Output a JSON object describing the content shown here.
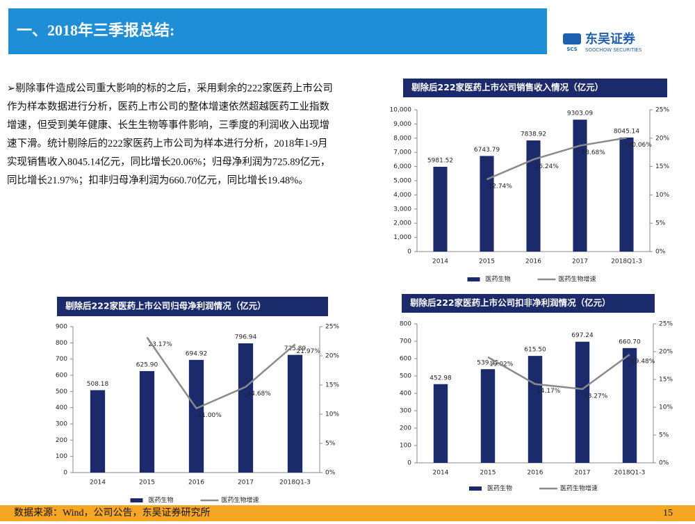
{
  "header": {
    "title": "一、2018年三季报总结:",
    "logo_text": "东吴证券",
    "logo_sub": "SOOCHOW SECURITIES",
    "logo_mark": "SCS"
  },
  "text": {
    "lines": [
      "➢剔除事件造成公司重大影响的标的之后，采用剩余的222家医药上市公司",
      "作为样本数据进行分析，医药上市公司的整体增速依然超越医药工业指数",
      "增速，但受到美年健康、长生生物等事件影响，三季度的利润收入出现增",
      "速下滑。统计剔除后的222家医药上市公司为样本进行分析，2018年1-9月",
      "实现销售收入8045.14亿元，同比增长20.06%；归母净利润为725.89亿元，",
      "同比增长21.97%；扣非归母净利润为660.70亿元，同比增长19.48%。"
    ]
  },
  "footer": {
    "source": "数据来源：Wind，公司公告，东吴证券研究所",
    "page": "15"
  },
  "chart_data": [
    {
      "type": "bar",
      "title": "剔除后222家医药上市公司销售收入情况（亿元）",
      "categories": [
        "2014",
        "2015",
        "2016",
        "2017",
        "2018Q1-3"
      ],
      "series": [
        {
          "name": "医药生物",
          "color": "#1b2a6b",
          "values": [
            5981.52,
            6743.79,
            7838.92,
            9303.09,
            8045.14
          ]
        },
        {
          "name": "医药生物增速",
          "color": "#8a8a8a",
          "axis": "y2",
          "values": [
            null,
            12.74,
            16.24,
            18.68,
            20.06
          ],
          "value_labels": [
            null,
            "12.74%",
            "16.24%",
            "18.68%",
            "20.06%"
          ]
        }
      ],
      "ylim": [
        0,
        10000
      ],
      "yticks": [
        0,
        {
          "value": 1000,
          "label": "1,000"
        },
        {
          "value": 2000,
          "label": "2,000"
        },
        {
          "value": 3000,
          "label": "3,000"
        },
        {
          "value": 4000,
          "label": "4,000"
        },
        {
          "value": 5000,
          "label": "5,000"
        },
        {
          "value": 6000,
          "label": "6,000"
        },
        {
          "value": 7000,
          "label": "7,000"
        },
        {
          "value": 8000,
          "label": "8,000"
        },
        {
          "value": 9000,
          "label": "9,000"
        },
        {
          "value": 10000,
          "label": "10,000"
        }
      ],
      "y2lim": [
        0,
        25
      ],
      "y2ticks": [
        {
          "value": 0,
          "label": "0%"
        },
        {
          "value": 5,
          "label": "5%"
        },
        {
          "value": 10,
          "label": "10%"
        },
        {
          "value": 15,
          "label": "15%"
        },
        {
          "value": 20,
          "label": "20%"
        },
        {
          "value": 25,
          "label": "25%"
        }
      ]
    },
    {
      "type": "bar",
      "title": "剔除后222家医药上市公司归母净利润情况（亿元）",
      "categories": [
        "2014",
        "2015",
        "2016",
        "2017",
        "2018Q1-3"
      ],
      "series": [
        {
          "name": "医药生物",
          "color": "#1b2a6b",
          "values": [
            508.18,
            625.9,
            694.92,
            796.94,
            725.89
          ],
          "value_labels": [
            "508.18",
            "625.90",
            "694.92",
            "796.94",
            "725.89"
          ]
        },
        {
          "name": "医药生物增速",
          "color": "#8a8a8a",
          "axis": "y2",
          "values": [
            null,
            23.17,
            11.0,
            14.68,
            21.97
          ],
          "value_labels": [
            null,
            "23.17%",
            "11.00%",
            "14.68%",
            "21.97%"
          ]
        }
      ],
      "ylim": [
        0,
        900
      ],
      "yticks": [
        0,
        100,
        200,
        300,
        400,
        500,
        600,
        700,
        800,
        900
      ],
      "y2lim": [
        0,
        25
      ],
      "y2ticks": [
        {
          "value": 0,
          "label": "0%"
        },
        {
          "value": 5,
          "label": "5%"
        },
        {
          "value": 10,
          "label": "10%"
        },
        {
          "value": 15,
          "label": "15%"
        },
        {
          "value": 20,
          "label": "20%"
        },
        {
          "value": 25,
          "label": "25%"
        }
      ]
    },
    {
      "type": "bar",
      "title": "剔除后222家医药上市公司扣非净利润情况（亿元）",
      "categories": [
        "2014",
        "2015",
        "2016",
        "2017",
        "2018Q1-3"
      ],
      "series": [
        {
          "name": "医药生物",
          "color": "#1b2a6b",
          "values": [
            452.98,
            539.15,
            615.5,
            697.24,
            660.7
          ],
          "value_labels": [
            "452.98",
            "539.15",
            "615.50",
            "697.24",
            "660.70"
          ]
        },
        {
          "name": "医药生物增速",
          "color": "#8a8a8a",
          "axis": "y2",
          "values": [
            null,
            19.02,
            14.17,
            13.27,
            19.48
          ],
          "value_labels": [
            null,
            "19.02%",
            "14.17%",
            "13.27%",
            "19.48%"
          ]
        }
      ],
      "ylim": [
        0,
        800
      ],
      "yticks": [
        0,
        100,
        200,
        300,
        400,
        500,
        600,
        700,
        800
      ],
      "y2lim": [
        0,
        25
      ],
      "y2ticks": [
        {
          "value": 0,
          "label": "0%"
        },
        {
          "value": 5,
          "label": "5%"
        },
        {
          "value": 10,
          "label": "10%"
        },
        {
          "value": 15,
          "label": "15%"
        },
        {
          "value": 20,
          "label": "20%"
        },
        {
          "value": 25,
          "label": "25%"
        }
      ]
    }
  ]
}
